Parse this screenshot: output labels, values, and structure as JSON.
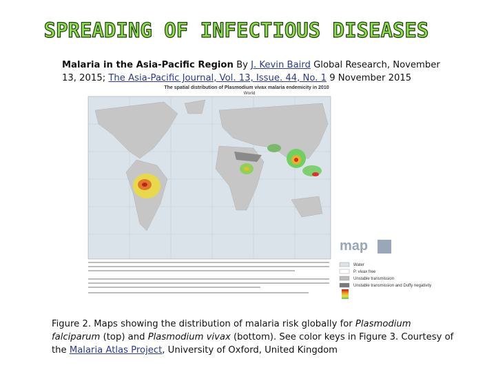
{
  "title": "SPREADING OF INFECTIOUS DISEASES",
  "intro": [
    "Malaria in the Asia-Pacific Region",
    " By ",
    "J. Kevin Baird",
    " Global Research, November 13, 2015; ",
    "The Asia-Pacific Journal, Vol. 13, Issue. 44, No. 1",
    " 9 November 2015"
  ],
  "map": {
    "title": "The spatial distribution of Plasmodium vivax malaria endemicity in 2010",
    "subtitle": "World",
    "logo": "map",
    "legend": [
      "Water",
      "P. vivax free",
      "Unstable transmission",
      "Unstable transmission and Duffy negativity"
    ]
  },
  "caption": [
    "Figure 2. Maps showing the distribution of malaria risk globally for ",
    "Plasmodium falciparum",
    " (top) and ",
    "Plasmodium vivax",
    " (bottom). See color keys in Figure 3. Courtesy of the ",
    "Malaria Atlas Project",
    ", University of Oxford, United Kingdom"
  ]
}
